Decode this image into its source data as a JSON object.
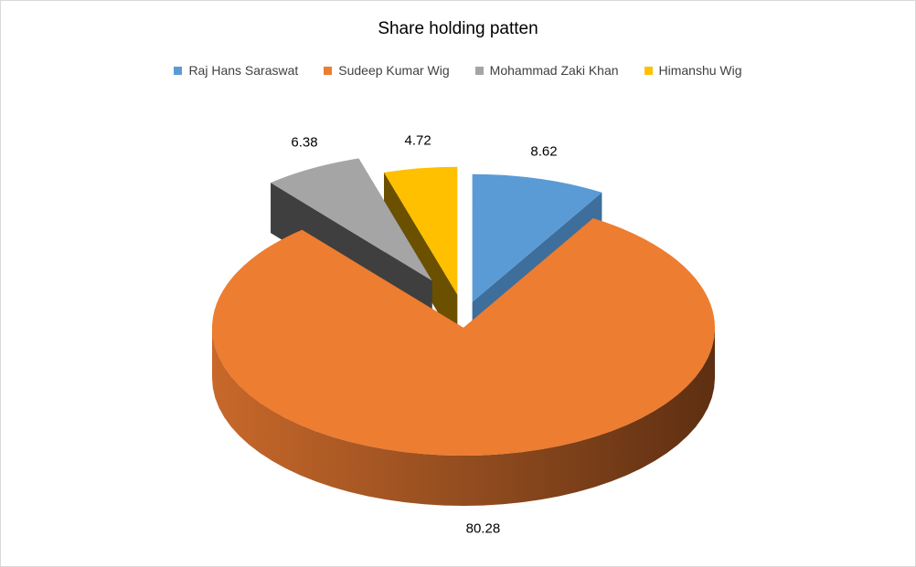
{
  "chart_data": {
    "type": "pie",
    "title": "Share holding patten",
    "legend_position": "top",
    "exploded": true,
    "style": "3d",
    "series": [
      {
        "name": "Raj Hans Saraswat",
        "value": 8.62,
        "label": "8.62",
        "color": "#5B9BD5",
        "dark": "#3E6E9B"
      },
      {
        "name": "Sudeep Kumar Wig",
        "value": 80.28,
        "label": "80.28",
        "color": "#ED7D31",
        "dark": "#9A4B1C"
      },
      {
        "name": "Mohammad Zaki Khan",
        "value": 6.38,
        "label": "6.38",
        "color": "#A5A5A5",
        "dark": "#3F3F3F"
      },
      {
        "name": "Himanshu Wig",
        "value": 4.72,
        "label": "4.72",
        "color": "#FFC000",
        "dark": "#6B5000"
      }
    ]
  }
}
